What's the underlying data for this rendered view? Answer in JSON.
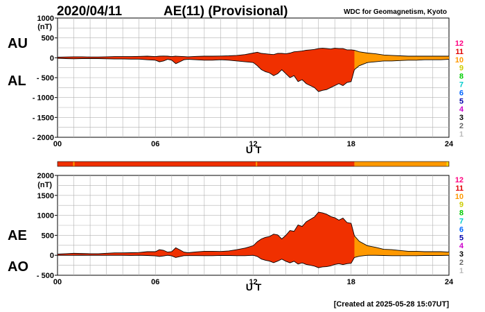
{
  "header": {
    "date": "2020/04/11",
    "title": "AE(11) (Provisional)",
    "source": "WDC for Geomagnetism, Kyoto"
  },
  "footer": {
    "created": "[Created at 2025-05-28 15:07UT]"
  },
  "legend": {
    "numbers": [
      "12",
      "11",
      "10",
      "9",
      "8",
      "7",
      "6",
      "5",
      "4",
      "3",
      "2",
      "1"
    ],
    "colors": [
      "#ff0080",
      "#e00000",
      "#ff9900",
      "#cccc00",
      "#00cc00",
      "#00cccc",
      "#0066ff",
      "#0000aa",
      "#cc00cc",
      "#000000",
      "#666666",
      "#bbbbbb"
    ]
  },
  "station_bar": {
    "segments": [
      {
        "from": 0,
        "to": 18.2,
        "color": "#f03000"
      },
      {
        "from": 18.2,
        "to": 24,
        "color": "#ff9900"
      }
    ],
    "marks": [
      {
        "at": 1.0,
        "color": "#ff9900"
      },
      {
        "at": 12.2,
        "color": "#ff9900"
      },
      {
        "at": 23.9,
        "color": "#f0e000"
      }
    ]
  },
  "chart_data": [
    {
      "type": "area",
      "name": "AU-AL",
      "labels": {
        "upper": "AU",
        "lower": "AL"
      },
      "unit": "(nT)",
      "xlabel": "U T",
      "x_ticks": [
        "00",
        "06",
        "12",
        "18",
        "24"
      ],
      "y_ticks": [
        "1000",
        "500",
        "0",
        "- 500",
        "- 1000",
        "- 1500",
        "- 2000"
      ],
      "ylim": [
        -2000,
        1000
      ],
      "color_change_hour": 18.2,
      "colors": {
        "before": "#f03000",
        "after": "#ff9900"
      },
      "x": [
        0,
        0.5,
        1,
        1.5,
        2,
        2.5,
        3,
        3.5,
        4,
        4.5,
        5,
        5.5,
        6,
        6.25,
        6.5,
        6.75,
        7,
        7.25,
        7.5,
        7.75,
        8,
        8.5,
        9,
        9.5,
        10,
        10.5,
        11,
        11.5,
        12,
        12.25,
        12.5,
        12.75,
        13,
        13.25,
        13.5,
        13.75,
        14,
        14.25,
        14.5,
        14.75,
        15,
        15.25,
        15.5,
        15.75,
        16,
        16.25,
        16.5,
        16.75,
        17,
        17.25,
        17.5,
        17.75,
        18,
        18.2,
        18.5,
        19,
        19.5,
        20,
        20.5,
        21,
        21.5,
        22,
        22.5,
        23,
        23.5,
        24
      ],
      "AU": [
        15,
        20,
        25,
        25,
        20,
        20,
        25,
        30,
        30,
        30,
        35,
        40,
        30,
        40,
        45,
        40,
        30,
        40,
        35,
        30,
        25,
        35,
        40,
        40,
        45,
        50,
        60,
        80,
        120,
        140,
        110,
        100,
        90,
        80,
        110,
        110,
        100,
        120,
        150,
        160,
        170,
        190,
        200,
        210,
        230,
        240,
        230,
        220,
        240,
        230,
        230,
        200,
        200,
        190,
        150,
        120,
        100,
        70,
        60,
        50,
        40,
        40,
        40,
        40,
        40,
        40
      ],
      "AL": [
        -15,
        -20,
        -25,
        -20,
        -20,
        -20,
        -25,
        -30,
        -30,
        -35,
        -35,
        -50,
        -60,
        -100,
        -80,
        -40,
        -60,
        -150,
        -100,
        -50,
        -40,
        -50,
        -60,
        -60,
        -50,
        -60,
        -80,
        -100,
        -120,
        -200,
        -300,
        -350,
        -380,
        -450,
        -400,
        -300,
        -400,
        -500,
        -450,
        -600,
        -550,
        -650,
        -700,
        -750,
        -850,
        -820,
        -800,
        -750,
        -700,
        -650,
        -700,
        -620,
        -600,
        -300,
        -200,
        -120,
        -100,
        -80,
        -80,
        -70,
        -60,
        -60,
        -50,
        -50,
        -50,
        -40
      ]
    },
    {
      "type": "area",
      "name": "AE-AO",
      "labels": {
        "upper": "AE",
        "lower": "AO"
      },
      "unit": "(nT)",
      "xlabel": "U T",
      "x_ticks": [
        "00",
        "06",
        "12",
        "18",
        "24"
      ],
      "y_ticks": [
        "2000",
        "1500",
        "1000",
        "500",
        "0",
        "- 500"
      ],
      "ylim": [
        -500,
        2000
      ],
      "color_change_hour": 18.2,
      "colors": {
        "before": "#f03000",
        "after": "#ff9900"
      },
      "x": [
        0,
        0.5,
        1,
        1.5,
        2,
        2.5,
        3,
        3.5,
        4,
        4.5,
        5,
        5.5,
        6,
        6.25,
        6.5,
        6.75,
        7,
        7.25,
        7.5,
        7.75,
        8,
        8.5,
        9,
        9.5,
        10,
        10.5,
        11,
        11.5,
        12,
        12.25,
        12.5,
        12.75,
        13,
        13.25,
        13.5,
        13.75,
        14,
        14.25,
        14.5,
        14.75,
        15,
        15.25,
        15.5,
        15.75,
        16,
        16.25,
        16.5,
        16.75,
        17,
        17.25,
        17.5,
        17.75,
        18,
        18.2,
        18.5,
        19,
        19.5,
        20,
        20.5,
        21,
        21.5,
        22,
        22.5,
        23,
        23.5,
        24
      ],
      "AE": [
        30,
        40,
        50,
        45,
        40,
        40,
        50,
        60,
        60,
        65,
        70,
        90,
        90,
        140,
        125,
        80,
        90,
        190,
        135,
        80,
        65,
        85,
        100,
        100,
        95,
        110,
        140,
        180,
        240,
        340,
        410,
        450,
        470,
        530,
        510,
        410,
        500,
        620,
        600,
        760,
        720,
        840,
        900,
        960,
        1080,
        1060,
        1030,
        970,
        940,
        880,
        930,
        820,
        800,
        490,
        350,
        240,
        200,
        150,
        140,
        120,
        100,
        100,
        90,
        90,
        90,
        80
      ],
      "AO": [
        0,
        0,
        0,
        3,
        0,
        0,
        0,
        0,
        0,
        -3,
        0,
        -5,
        -15,
        -30,
        -18,
        0,
        -15,
        -55,
        -33,
        -10,
        -8,
        -8,
        -10,
        -10,
        -3,
        -5,
        -10,
        -10,
        0,
        -30,
        -95,
        -125,
        -145,
        -185,
        -145,
        -95,
        -150,
        -190,
        -150,
        -220,
        -190,
        -230,
        -250,
        -270,
        -310,
        -290,
        -285,
        -265,
        -230,
        -210,
        -235,
        -210,
        -200,
        -55,
        -25,
        0,
        0,
        -5,
        -10,
        -10,
        -10,
        -10,
        -5,
        -5,
        -5,
        0
      ]
    }
  ]
}
